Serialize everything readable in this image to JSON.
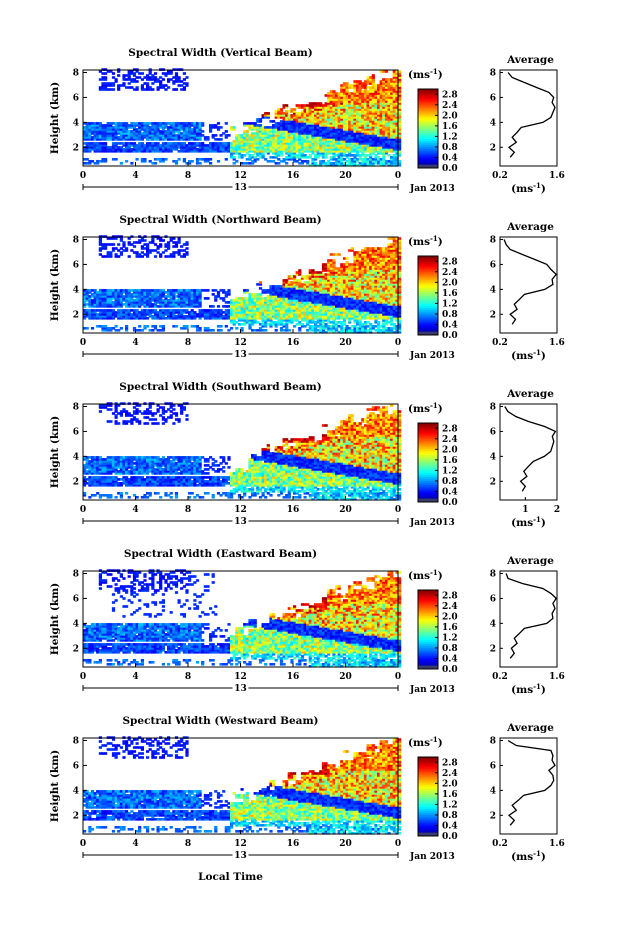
{
  "figure": {
    "bottom_xlabel": "Local Time",
    "date_label": "Jan 2013",
    "colorbar_unit_base": "(ms",
    "colorbar_unit_exp": "-1",
    "colorbar_unit_close": ")",
    "avg_title": "Average",
    "avg_unit_base": "(ms",
    "avg_unit_exp": "-1",
    "avg_unit_close": ")"
  },
  "chart_data": [
    {
      "type": "heatmap",
      "title": "Spectral Width (Vertical Beam)",
      "ylabel": "Height (km)",
      "x_ticks": [
        "0",
        "4",
        "8",
        "12",
        "16",
        "20",
        "0"
      ],
      "day_label": "13",
      "y_ticks": [
        "8",
        "6",
        "4",
        "2"
      ],
      "ylim": [
        0.5,
        8.2
      ],
      "xlim": [
        0,
        24
      ],
      "colorbar": {
        "ticks": [
          "2.8",
          "2.4",
          "2.0",
          "1.6",
          "1.2",
          "0.8",
          "0.4",
          "0.0"
        ],
        "range": [
          0.0,
          3.0
        ]
      },
      "average": {
        "x_ticks": [
          "0.2",
          "1.6"
        ],
        "xlim": [
          0.2,
          1.6
        ],
        "y_ticks": [
          "8",
          "6",
          "4",
          "2"
        ],
        "profile": [
          [
            0.45,
            1.2
          ],
          [
            0.55,
            1.6
          ],
          [
            0.42,
            2.0
          ],
          [
            0.6,
            2.4
          ],
          [
            0.5,
            2.8
          ],
          [
            0.62,
            3.2
          ],
          [
            0.72,
            3.6
          ],
          [
            1.25,
            4.0
          ],
          [
            1.45,
            4.4
          ],
          [
            1.5,
            4.8
          ],
          [
            1.55,
            5.2
          ],
          [
            1.48,
            5.6
          ],
          [
            1.52,
            6.0
          ],
          [
            1.4,
            6.4
          ],
          [
            1.1,
            6.8
          ],
          [
            0.8,
            7.2
          ],
          [
            0.5,
            7.6
          ],
          [
            0.4,
            8.0
          ]
        ]
      }
    },
    {
      "type": "heatmap",
      "title": "Spectral Width (Northward Beam)",
      "ylabel": "Height (km)",
      "x_ticks": [
        "0",
        "4",
        "8",
        "12",
        "16",
        "20",
        "0"
      ],
      "day_label": "13",
      "y_ticks": [
        "8",
        "6",
        "4",
        "2"
      ],
      "ylim": [
        0.5,
        8.2
      ],
      "xlim": [
        0,
        24
      ],
      "colorbar": {
        "ticks": [
          "2.8",
          "2.4",
          "2.0",
          "1.6",
          "1.2",
          "0.8",
          "0.4",
          "0.0"
        ],
        "range": [
          0.0,
          3.0
        ]
      },
      "average": {
        "x_ticks": [
          "0.2",
          "1.6"
        ],
        "xlim": [
          0.2,
          1.6
        ],
        "y_ticks": [
          "8",
          "6",
          "4",
          "2"
        ],
        "profile": [
          [
            0.5,
            1.2
          ],
          [
            0.58,
            1.6
          ],
          [
            0.45,
            2.0
          ],
          [
            0.62,
            2.4
          ],
          [
            0.55,
            2.8
          ],
          [
            0.68,
            3.2
          ],
          [
            0.8,
            3.6
          ],
          [
            1.3,
            4.0
          ],
          [
            1.5,
            4.4
          ],
          [
            1.48,
            4.8
          ],
          [
            1.58,
            5.2
          ],
          [
            1.45,
            5.6
          ],
          [
            1.35,
            6.0
          ],
          [
            1.05,
            6.4
          ],
          [
            0.75,
            6.8
          ],
          [
            0.45,
            7.2
          ],
          [
            0.35,
            7.6
          ],
          [
            0.3,
            8.0
          ]
        ]
      }
    },
    {
      "type": "heatmap",
      "title": "Spectral Width (Southward Beam)",
      "ylabel": "Height (km)",
      "x_ticks": [
        "0",
        "4",
        "8",
        "12",
        "16",
        "20",
        "0"
      ],
      "day_label": "13",
      "y_ticks": [
        "8",
        "6",
        "4",
        "2"
      ],
      "ylim": [
        0.5,
        8.2
      ],
      "xlim": [
        0,
        24
      ],
      "colorbar": {
        "ticks": [
          "2.8",
          "2.4",
          "2.0",
          "1.6",
          "1.2",
          "0.8",
          "0.4",
          "0.0"
        ],
        "range": [
          0.0,
          3.0
        ]
      },
      "average": {
        "x_ticks": [
          "1",
          "2"
        ],
        "xlim": [
          0.2,
          2.0
        ],
        "y_ticks": [
          "8",
          "6",
          "4",
          "2"
        ],
        "profile": [
          [
            0.9,
            1.2
          ],
          [
            1.0,
            1.6
          ],
          [
            0.85,
            2.0
          ],
          [
            1.05,
            2.4
          ],
          [
            0.95,
            2.8
          ],
          [
            1.1,
            3.2
          ],
          [
            1.25,
            3.6
          ],
          [
            1.6,
            4.0
          ],
          [
            1.8,
            4.4
          ],
          [
            1.85,
            4.8
          ],
          [
            1.9,
            5.2
          ],
          [
            1.85,
            5.6
          ],
          [
            1.95,
            6.0
          ],
          [
            1.6,
            6.4
          ],
          [
            1.1,
            6.8
          ],
          [
            0.7,
            7.2
          ],
          [
            0.45,
            7.6
          ],
          [
            0.35,
            8.0
          ]
        ]
      }
    },
    {
      "type": "heatmap",
      "title": "Spectral Width (Eastward Beam)",
      "ylabel": "Height (km)",
      "x_ticks": [
        "0",
        "4",
        "8",
        "12",
        "16",
        "20",
        "0"
      ],
      "day_label": "13",
      "y_ticks": [
        "8",
        "6",
        "4",
        "2"
      ],
      "ylim": [
        0.5,
        8.2
      ],
      "xlim": [
        0,
        24
      ],
      "colorbar": {
        "ticks": [
          "2.8",
          "2.4",
          "2.0",
          "1.6",
          "1.2",
          "0.8",
          "0.4",
          "0.0"
        ],
        "range": [
          0.0,
          3.0
        ]
      },
      "average": {
        "x_ticks": [
          "0.2",
          "1.6"
        ],
        "xlim": [
          0.2,
          1.6
        ],
        "y_ticks": [
          "8",
          "6",
          "4",
          "2"
        ],
        "profile": [
          [
            0.45,
            1.2
          ],
          [
            0.55,
            1.6
          ],
          [
            0.48,
            2.0
          ],
          [
            0.62,
            2.4
          ],
          [
            0.55,
            2.8
          ],
          [
            0.68,
            3.2
          ],
          [
            0.8,
            3.6
          ],
          [
            1.35,
            4.0
          ],
          [
            1.5,
            4.4
          ],
          [
            1.48,
            4.8
          ],
          [
            1.55,
            5.2
          ],
          [
            1.5,
            5.6
          ],
          [
            1.58,
            6.0
          ],
          [
            1.45,
            6.4
          ],
          [
            1.25,
            6.8
          ],
          [
            0.75,
            7.2
          ],
          [
            0.4,
            7.6
          ],
          [
            0.35,
            8.0
          ]
        ]
      }
    },
    {
      "type": "heatmap",
      "title": "Spectral Width (Westward Beam)",
      "ylabel": "Height (km)",
      "x_ticks": [
        "0",
        "4",
        "8",
        "12",
        "16",
        "20",
        "0"
      ],
      "day_label": "13",
      "y_ticks": [
        "8",
        "6",
        "4",
        "2"
      ],
      "ylim": [
        0.5,
        8.2
      ],
      "xlim": [
        0,
        24
      ],
      "colorbar": {
        "ticks": [
          "2.8",
          "2.4",
          "2.0",
          "1.6",
          "1.2",
          "0.8",
          "0.4",
          "0.0"
        ],
        "range": [
          0.0,
          3.0
        ]
      },
      "average": {
        "x_ticks": [
          "0.2",
          "1.6"
        ],
        "xlim": [
          0.2,
          1.6
        ],
        "y_ticks": [
          "8",
          "6",
          "4",
          "2"
        ],
        "profile": [
          [
            0.45,
            1.2
          ],
          [
            0.55,
            1.6
          ],
          [
            0.42,
            2.0
          ],
          [
            0.6,
            2.4
          ],
          [
            0.5,
            2.8
          ],
          [
            0.65,
            3.2
          ],
          [
            0.78,
            3.6
          ],
          [
            1.3,
            4.0
          ],
          [
            1.45,
            4.4
          ],
          [
            1.52,
            4.8
          ],
          [
            1.5,
            5.2
          ],
          [
            1.4,
            5.6
          ],
          [
            1.55,
            6.0
          ],
          [
            1.48,
            6.4
          ],
          [
            1.5,
            6.8
          ],
          [
            1.45,
            7.2
          ],
          [
            0.6,
            7.6
          ],
          [
            0.4,
            8.0
          ]
        ]
      }
    }
  ]
}
